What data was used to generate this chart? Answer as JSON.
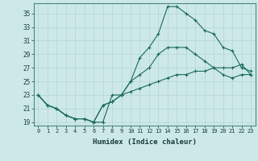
{
  "xlabel": "Humidex (Indice chaleur)",
  "ylabel": "",
  "xlim": [
    -0.5,
    23.5
  ],
  "ylim": [
    18.5,
    36.5
  ],
  "yticks": [
    19,
    21,
    23,
    25,
    27,
    29,
    31,
    33,
    35
  ],
  "xticks": [
    0,
    1,
    2,
    3,
    4,
    5,
    6,
    7,
    8,
    9,
    10,
    11,
    12,
    13,
    14,
    15,
    16,
    17,
    18,
    19,
    20,
    21,
    22,
    23
  ],
  "bg_color": "#cce8e8",
  "line_color": "#1a6b5a",
  "grid_color": "#b8d8d8",
  "lines": [
    {
      "x": [
        0,
        1,
        2,
        3,
        4,
        5,
        6,
        7,
        8,
        9,
        10,
        11,
        12,
        13,
        14,
        15,
        16,
        17,
        18,
        19,
        20,
        21,
        22,
        23
      ],
      "y": [
        23,
        21.5,
        21,
        20,
        19.5,
        19.5,
        19,
        19,
        23,
        23,
        25,
        28.5,
        30,
        32,
        36,
        36,
        35,
        34,
        32.5,
        32,
        30,
        29.5,
        27,
        26.5
      ]
    },
    {
      "x": [
        0,
        1,
        2,
        3,
        4,
        5,
        6,
        7,
        8,
        9,
        10,
        11,
        12,
        13,
        14,
        15,
        16,
        17,
        18,
        19,
        20,
        21,
        22,
        23
      ],
      "y": [
        23,
        21.5,
        21,
        20,
        19.5,
        19.5,
        19,
        21.5,
        22,
        23,
        25,
        26,
        27,
        29,
        30,
        30,
        30,
        29,
        28,
        27,
        26,
        25.5,
        26,
        26
      ]
    },
    {
      "x": [
        0,
        1,
        2,
        3,
        4,
        5,
        6,
        7,
        8,
        9,
        10,
        11,
        12,
        13,
        14,
        15,
        16,
        17,
        18,
        19,
        20,
        21,
        22,
        23
      ],
      "y": [
        23,
        21.5,
        21,
        20,
        19.5,
        19.5,
        19,
        21.5,
        22,
        23,
        23.5,
        24,
        24.5,
        25,
        25.5,
        26,
        26,
        26.5,
        26.5,
        27,
        27,
        27,
        27.5,
        26
      ]
    }
  ]
}
